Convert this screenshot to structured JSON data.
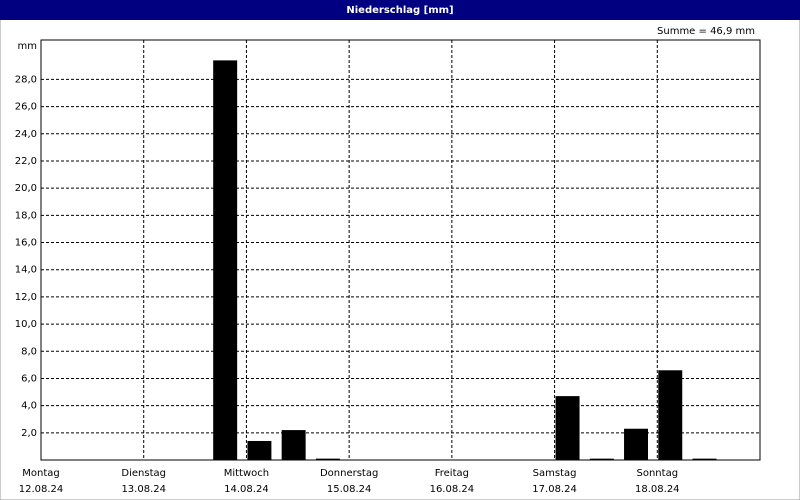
{
  "chart_data": {
    "type": "bar",
    "title": "Niederschlag [mm]",
    "y_unit": "mm",
    "summary": "Summe = 46,9 mm",
    "days": [
      {
        "name": "Montag",
        "date": "12.08.24"
      },
      {
        "name": "Dienstag",
        "date": "13.08.24"
      },
      {
        "name": "Mittwoch",
        "date": "14.08.24"
      },
      {
        "name": "Donnerstag",
        "date": "15.08.24"
      },
      {
        "name": "Freitag",
        "date": "16.08.24"
      },
      {
        "name": "Samstag",
        "date": "17.08.24"
      },
      {
        "name": "Sonntag",
        "date": "18.08.24"
      }
    ],
    "values": [
      0,
      0,
      0,
      0,
      0,
      29.4,
      1.4,
      2.2,
      0.1,
      0,
      0,
      0,
      0,
      0,
      0,
      4.7,
      0.1,
      2.3,
      6.6,
      0.1,
      0
    ],
    "color": "#000000",
    "ylim": [
      0,
      30.9
    ],
    "yticks": [
      {
        "value": 2,
        "label": "2,0"
      },
      {
        "value": 4,
        "label": "4,0"
      },
      {
        "value": 6,
        "label": "6,0"
      },
      {
        "value": 8,
        "label": "8,0"
      },
      {
        "value": 10,
        "label": "10,0"
      },
      {
        "value": 12,
        "label": "12,0"
      },
      {
        "value": 14,
        "label": "14,0"
      },
      {
        "value": 16,
        "label": "16,0"
      },
      {
        "value": 18,
        "label": "18,0"
      },
      {
        "value": 20,
        "label": "20,0"
      },
      {
        "value": 22,
        "label": "22,0"
      },
      {
        "value": 24,
        "label": "24,0"
      },
      {
        "value": 26,
        "label": "26,0"
      },
      {
        "value": 28,
        "label": "28,0"
      }
    ],
    "grid": true
  }
}
